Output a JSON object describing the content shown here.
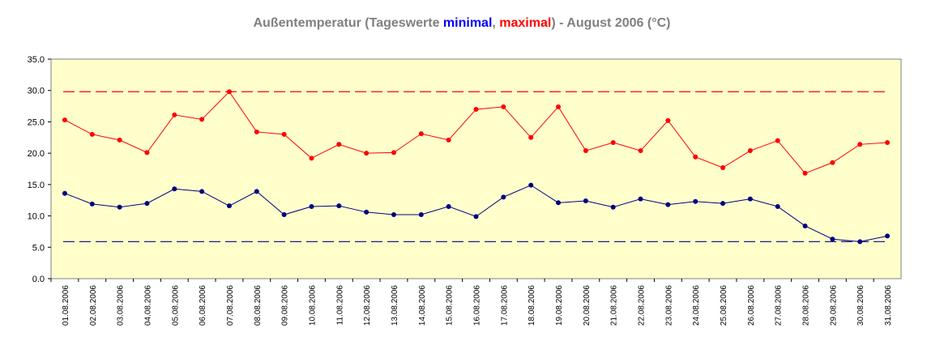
{
  "chart_data": {
    "type": "line",
    "title_parts": [
      {
        "text": "Außentemperatur (Tageswerte ",
        "color": "#808080"
      },
      {
        "text": "minimal",
        "color": "#0000ff"
      },
      {
        "text": ", ",
        "color": "#808080"
      },
      {
        "text": "maximal",
        "color": "#ff0000"
      },
      {
        "text": ") - August 2006 (°C)",
        "color": "#808080"
      }
    ],
    "categories": [
      "01.08.2006",
      "02.08.2006",
      "03.08.2006",
      "04.08.2006",
      "05.08.2006",
      "06.08.2006",
      "07.08.2006",
      "08.08.2006",
      "09.08.2006",
      "10.08.2006",
      "11.08.2006",
      "12.08.2006",
      "13.08.2006",
      "14.08.2006",
      "15.08.2006",
      "16.08.2006",
      "17.08.2006",
      "18.08.2006",
      "19.08.2006",
      "20.08.2006",
      "21.08.2006",
      "22.08.2006",
      "23.08.2006",
      "24.08.2006",
      "25.08.2006",
      "26.08.2006",
      "27.08.2006",
      "28.08.2006",
      "29.08.2006",
      "30.08.2006",
      "31.08.2006"
    ],
    "series": [
      {
        "color": "#ff0000",
        "values": [
          25.3,
          23.0,
          22.1,
          20.1,
          26.1,
          25.4,
          29.8,
          23.4,
          23.0,
          19.2,
          21.4,
          20.0,
          20.1,
          23.1,
          22.1,
          27.0,
          27.4,
          22.5,
          27.4,
          20.4,
          21.7,
          20.4,
          25.2,
          19.4,
          17.7,
          20.4,
          22.0,
          16.8,
          18.5,
          21.4,
          21.7
        ]
      },
      {
        "color": "#000080",
        "values": [
          13.6,
          11.9,
          11.4,
          12.0,
          14.3,
          13.9,
          11.6,
          13.9,
          10.2,
          11.5,
          11.6,
          10.6,
          10.2,
          10.2,
          11.5,
          9.9,
          13.0,
          14.9,
          12.1,
          12.4,
          11.4,
          12.7,
          11.8,
          12.3,
          12.0,
          12.7,
          11.5,
          8.4,
          6.3,
          5.9,
          6.8
        ]
      }
    ],
    "reference_lines": [
      {
        "value": 29.8,
        "color": "#ff0000"
      },
      {
        "value": 5.9,
        "color": "#000080"
      }
    ],
    "ylim": [
      0,
      35
    ],
    "yticks": [
      {
        "value": 0,
        "label": "0.0"
      },
      {
        "value": 5,
        "label": "5.0"
      },
      {
        "value": 10,
        "label": "10.0"
      },
      {
        "value": 15,
        "label": "15.0"
      },
      {
        "value": 20,
        "label": "20.0"
      },
      {
        "value": 25,
        "label": "25.0"
      },
      {
        "value": 30,
        "label": "30.0"
      },
      {
        "value": 35,
        "label": "35.0"
      }
    ],
    "plot_background": "#ffffcc"
  }
}
